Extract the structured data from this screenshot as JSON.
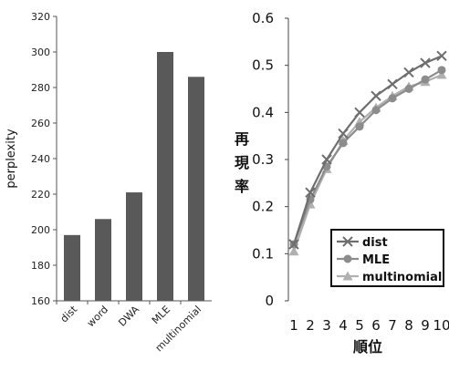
{
  "chart_data": [
    {
      "type": "bar",
      "categories": [
        "dist",
        "word",
        "DWA",
        "MLE",
        "multinomial"
      ],
      "values": [
        197,
        206,
        221,
        300,
        286
      ],
      "ylabel": "perplexity",
      "ylim": [
        160,
        320
      ],
      "yticks": [
        160,
        180,
        200,
        220,
        240,
        260,
        280,
        300,
        320
      ],
      "color": "#595959",
      "grid": false
    },
    {
      "type": "line",
      "x": [
        1,
        2,
        3,
        4,
        5,
        6,
        7,
        8,
        9,
        10
      ],
      "xlabel": "順位",
      "ylabel": "再現率",
      "ylim": [
        0,
        0.6
      ],
      "yticks": [
        "0",
        "0.1",
        "0.2",
        "0.3",
        "0.4",
        "0.5",
        "0.6"
      ],
      "grid": false,
      "legend_position": "bottom-right",
      "series": [
        {
          "name": "dist",
          "marker": "x",
          "color": "#6e6e6e",
          "values": [
            0.12,
            0.23,
            0.3,
            0.355,
            0.4,
            0.435,
            0.46,
            0.485,
            0.505,
            0.52
          ]
        },
        {
          "name": "MLE",
          "marker": "circle",
          "color": "#8c8c8c",
          "values": [
            0.12,
            0.215,
            0.285,
            0.335,
            0.37,
            0.405,
            0.43,
            0.45,
            0.47,
            0.49
          ]
        },
        {
          "name": "multinomial",
          "marker": "triangle",
          "color": "#b0b0b0",
          "values": [
            0.105,
            0.205,
            0.28,
            0.34,
            0.38,
            0.41,
            0.435,
            0.455,
            0.465,
            0.48
          ]
        }
      ]
    }
  ]
}
